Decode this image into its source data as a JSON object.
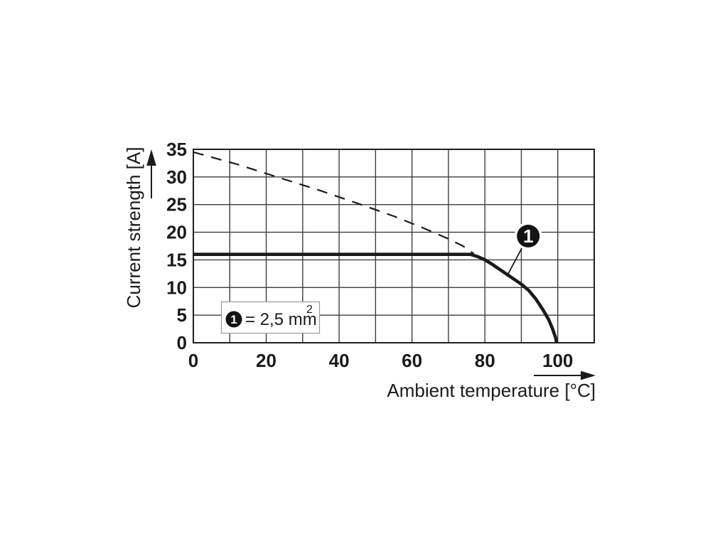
{
  "chart_data": {
    "type": "line",
    "title": "",
    "xlabel": "Ambient temperature [°C]",
    "ylabel": "Current strength [A]",
    "xlim": [
      0,
      110
    ],
    "ylim": [
      0,
      35
    ],
    "x_grid_step": 10,
    "y_grid_step": 5,
    "xticks": [
      "0",
      "20",
      "40",
      "60",
      "80",
      "100"
    ],
    "xtick_values": [
      0,
      20,
      40,
      60,
      80,
      100
    ],
    "yticks": [
      "0",
      "5",
      "10",
      "15",
      "20",
      "25",
      "30",
      "35"
    ],
    "ytick_values": [
      0,
      5,
      10,
      15,
      20,
      25,
      30,
      35
    ],
    "grid": true,
    "legend_position": "inside-lower-left",
    "colors": {
      "line": "#1a1a1a",
      "grid": "#3d3d3d",
      "border": "#1f1f1f",
      "background": "#ffffff",
      "marker_fill": "#141414",
      "legend_border": "#9a9a9a"
    },
    "series": [
      {
        "name": "reference-line-dashed",
        "style": "dashed",
        "points": [
          [
            0,
            34.5
          ],
          [
            12,
            32.3
          ],
          [
            23,
            30
          ],
          [
            35,
            27.5
          ],
          [
            46,
            25
          ],
          [
            55,
            22.9
          ],
          [
            63,
            20.8
          ],
          [
            70,
            18.8
          ],
          [
            74,
            17.5
          ],
          [
            77,
            16.1
          ]
        ]
      },
      {
        "name": "derating-curve-2p5mm2",
        "style": "solid",
        "points": [
          [
            0,
            16
          ],
          [
            76,
            16
          ],
          [
            78,
            15.6
          ],
          [
            80,
            15
          ],
          [
            82,
            14.2
          ],
          [
            84,
            13.3
          ],
          [
            86,
            12.4
          ],
          [
            88,
            11.5
          ],
          [
            90,
            10.6
          ],
          [
            92,
            9.5
          ],
          [
            94,
            7.9
          ],
          [
            96,
            5.9
          ],
          [
            97.5,
            4.2
          ],
          [
            98.6,
            2.5
          ],
          [
            99.4,
            0.9
          ],
          [
            99.7,
            0
          ]
        ]
      }
    ],
    "annotations": {
      "callout": {
        "label": "1",
        "center": [
          91.9,
          19.3
        ],
        "pointer_end": [
          86.4,
          12.5
        ]
      },
      "legend": {
        "marker_label": "1",
        "text": "= 2,5 mm",
        "superscript": "2"
      }
    }
  }
}
